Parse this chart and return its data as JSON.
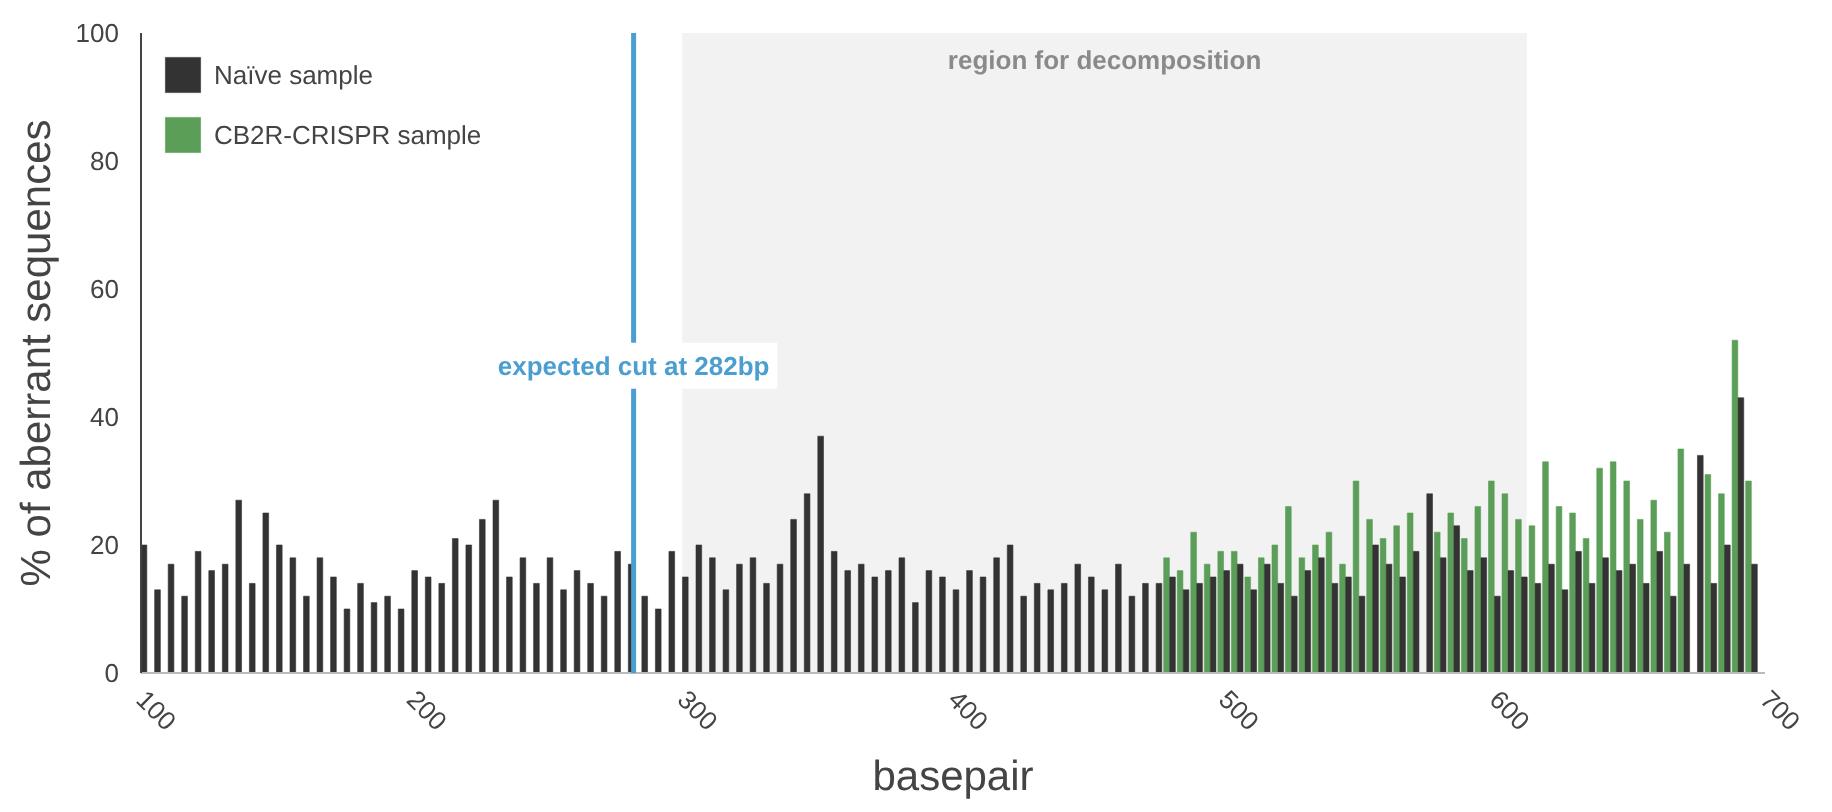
{
  "chart_data": {
    "type": "bar",
    "xlabel": "basepair",
    "ylabel": "% of aberrant sequences",
    "x": [
      100,
      105,
      110,
      115,
      120,
      125,
      130,
      135,
      140,
      145,
      150,
      155,
      160,
      165,
      170,
      175,
      180,
      185,
      190,
      195,
      200,
      205,
      210,
      215,
      220,
      225,
      230,
      235,
      240,
      245,
      250,
      255,
      260,
      265,
      270,
      275,
      280,
      285,
      290,
      295,
      300,
      305,
      310,
      315,
      320,
      325,
      330,
      335,
      340,
      345,
      350,
      355,
      360,
      365,
      370,
      375,
      380,
      385,
      390,
      395,
      400,
      405,
      410,
      415,
      420,
      425,
      430,
      435,
      440,
      445,
      450,
      455,
      460,
      465,
      470,
      475,
      480,
      485,
      490,
      495,
      500,
      505,
      510,
      515,
      520,
      525,
      530,
      535,
      540,
      545,
      550,
      555,
      560,
      565,
      570,
      575,
      580,
      585,
      590,
      595,
      600,
      605,
      610,
      615,
      620,
      625,
      630,
      635,
      640,
      645,
      650,
      655,
      660,
      665,
      670,
      675,
      680,
      685,
      690,
      695
    ],
    "series": [
      {
        "name": "CB2R-CRISPR sample",
        "color": "#5a9e58",
        "values": [
          null,
          null,
          null,
          null,
          null,
          null,
          null,
          null,
          null,
          null,
          null,
          null,
          null,
          null,
          null,
          null,
          null,
          null,
          null,
          null,
          null,
          null,
          null,
          null,
          null,
          null,
          null,
          null,
          null,
          null,
          null,
          null,
          null,
          null,
          null,
          null,
          null,
          null,
          null,
          null,
          null,
          null,
          null,
          null,
          null,
          null,
          null,
          null,
          null,
          null,
          null,
          null,
          null,
          null,
          null,
          null,
          null,
          null,
          null,
          null,
          null,
          null,
          null,
          null,
          null,
          null,
          null,
          null,
          null,
          null,
          null,
          null,
          null,
          null,
          null,
          null,
          18,
          16,
          22,
          17,
          19,
          19,
          15,
          18,
          20,
          26,
          18,
          20,
          22,
          17,
          30,
          24,
          21,
          23,
          25,
          null,
          22,
          25,
          21,
          26,
          30,
          28,
          24,
          23,
          33,
          26,
          25,
          21,
          32,
          33,
          30,
          24,
          27,
          22,
          35,
          null,
          31,
          28,
          52,
          30
        ]
      },
      {
        "name": "Naïve sample",
        "color": "#333333",
        "values": [
          20,
          13,
          17,
          12,
          19,
          16,
          17,
          27,
          14,
          25,
          20,
          18,
          12,
          18,
          15,
          10,
          14,
          11,
          12,
          10,
          16,
          15,
          14,
          21,
          20,
          24,
          27,
          15,
          18,
          14,
          18,
          13,
          16,
          14,
          12,
          19,
          17,
          12,
          10,
          19,
          15,
          20,
          18,
          13,
          17,
          18,
          14,
          17,
          24,
          28,
          37,
          19,
          16,
          17,
          15,
          16,
          18,
          11,
          16,
          15,
          13,
          16,
          15,
          18,
          20,
          12,
          14,
          13,
          14,
          17,
          15,
          13,
          17,
          12,
          14,
          14,
          15,
          13,
          14,
          15,
          16,
          17,
          13,
          17,
          14,
          12,
          16,
          18,
          14,
          15,
          12,
          20,
          17,
          15,
          19,
          28,
          18,
          23,
          16,
          18,
          12,
          16,
          15,
          14,
          17,
          13,
          19,
          14,
          18,
          16,
          17,
          14,
          19,
          12,
          17,
          34,
          14,
          20,
          43,
          17
        ]
      }
    ],
    "xlim": [
      100,
      700
    ],
    "ylim": [
      0,
      100
    ],
    "xticks": [
      100,
      200,
      300,
      400,
      500,
      600,
      700
    ],
    "yticks": [
      0,
      20,
      40,
      60,
      80,
      100
    ],
    "ref_lines": [
      {
        "axis": "x",
        "value": 282,
        "label": "expected cut at 282bp",
        "color": "#4a9fd0"
      }
    ],
    "bands": [
      {
        "axis": "x",
        "from": 300,
        "to": 612,
        "label": "region for decomposition",
        "color": "#f2f2f2"
      }
    ],
    "legend": "top left",
    "grid": false
  }
}
